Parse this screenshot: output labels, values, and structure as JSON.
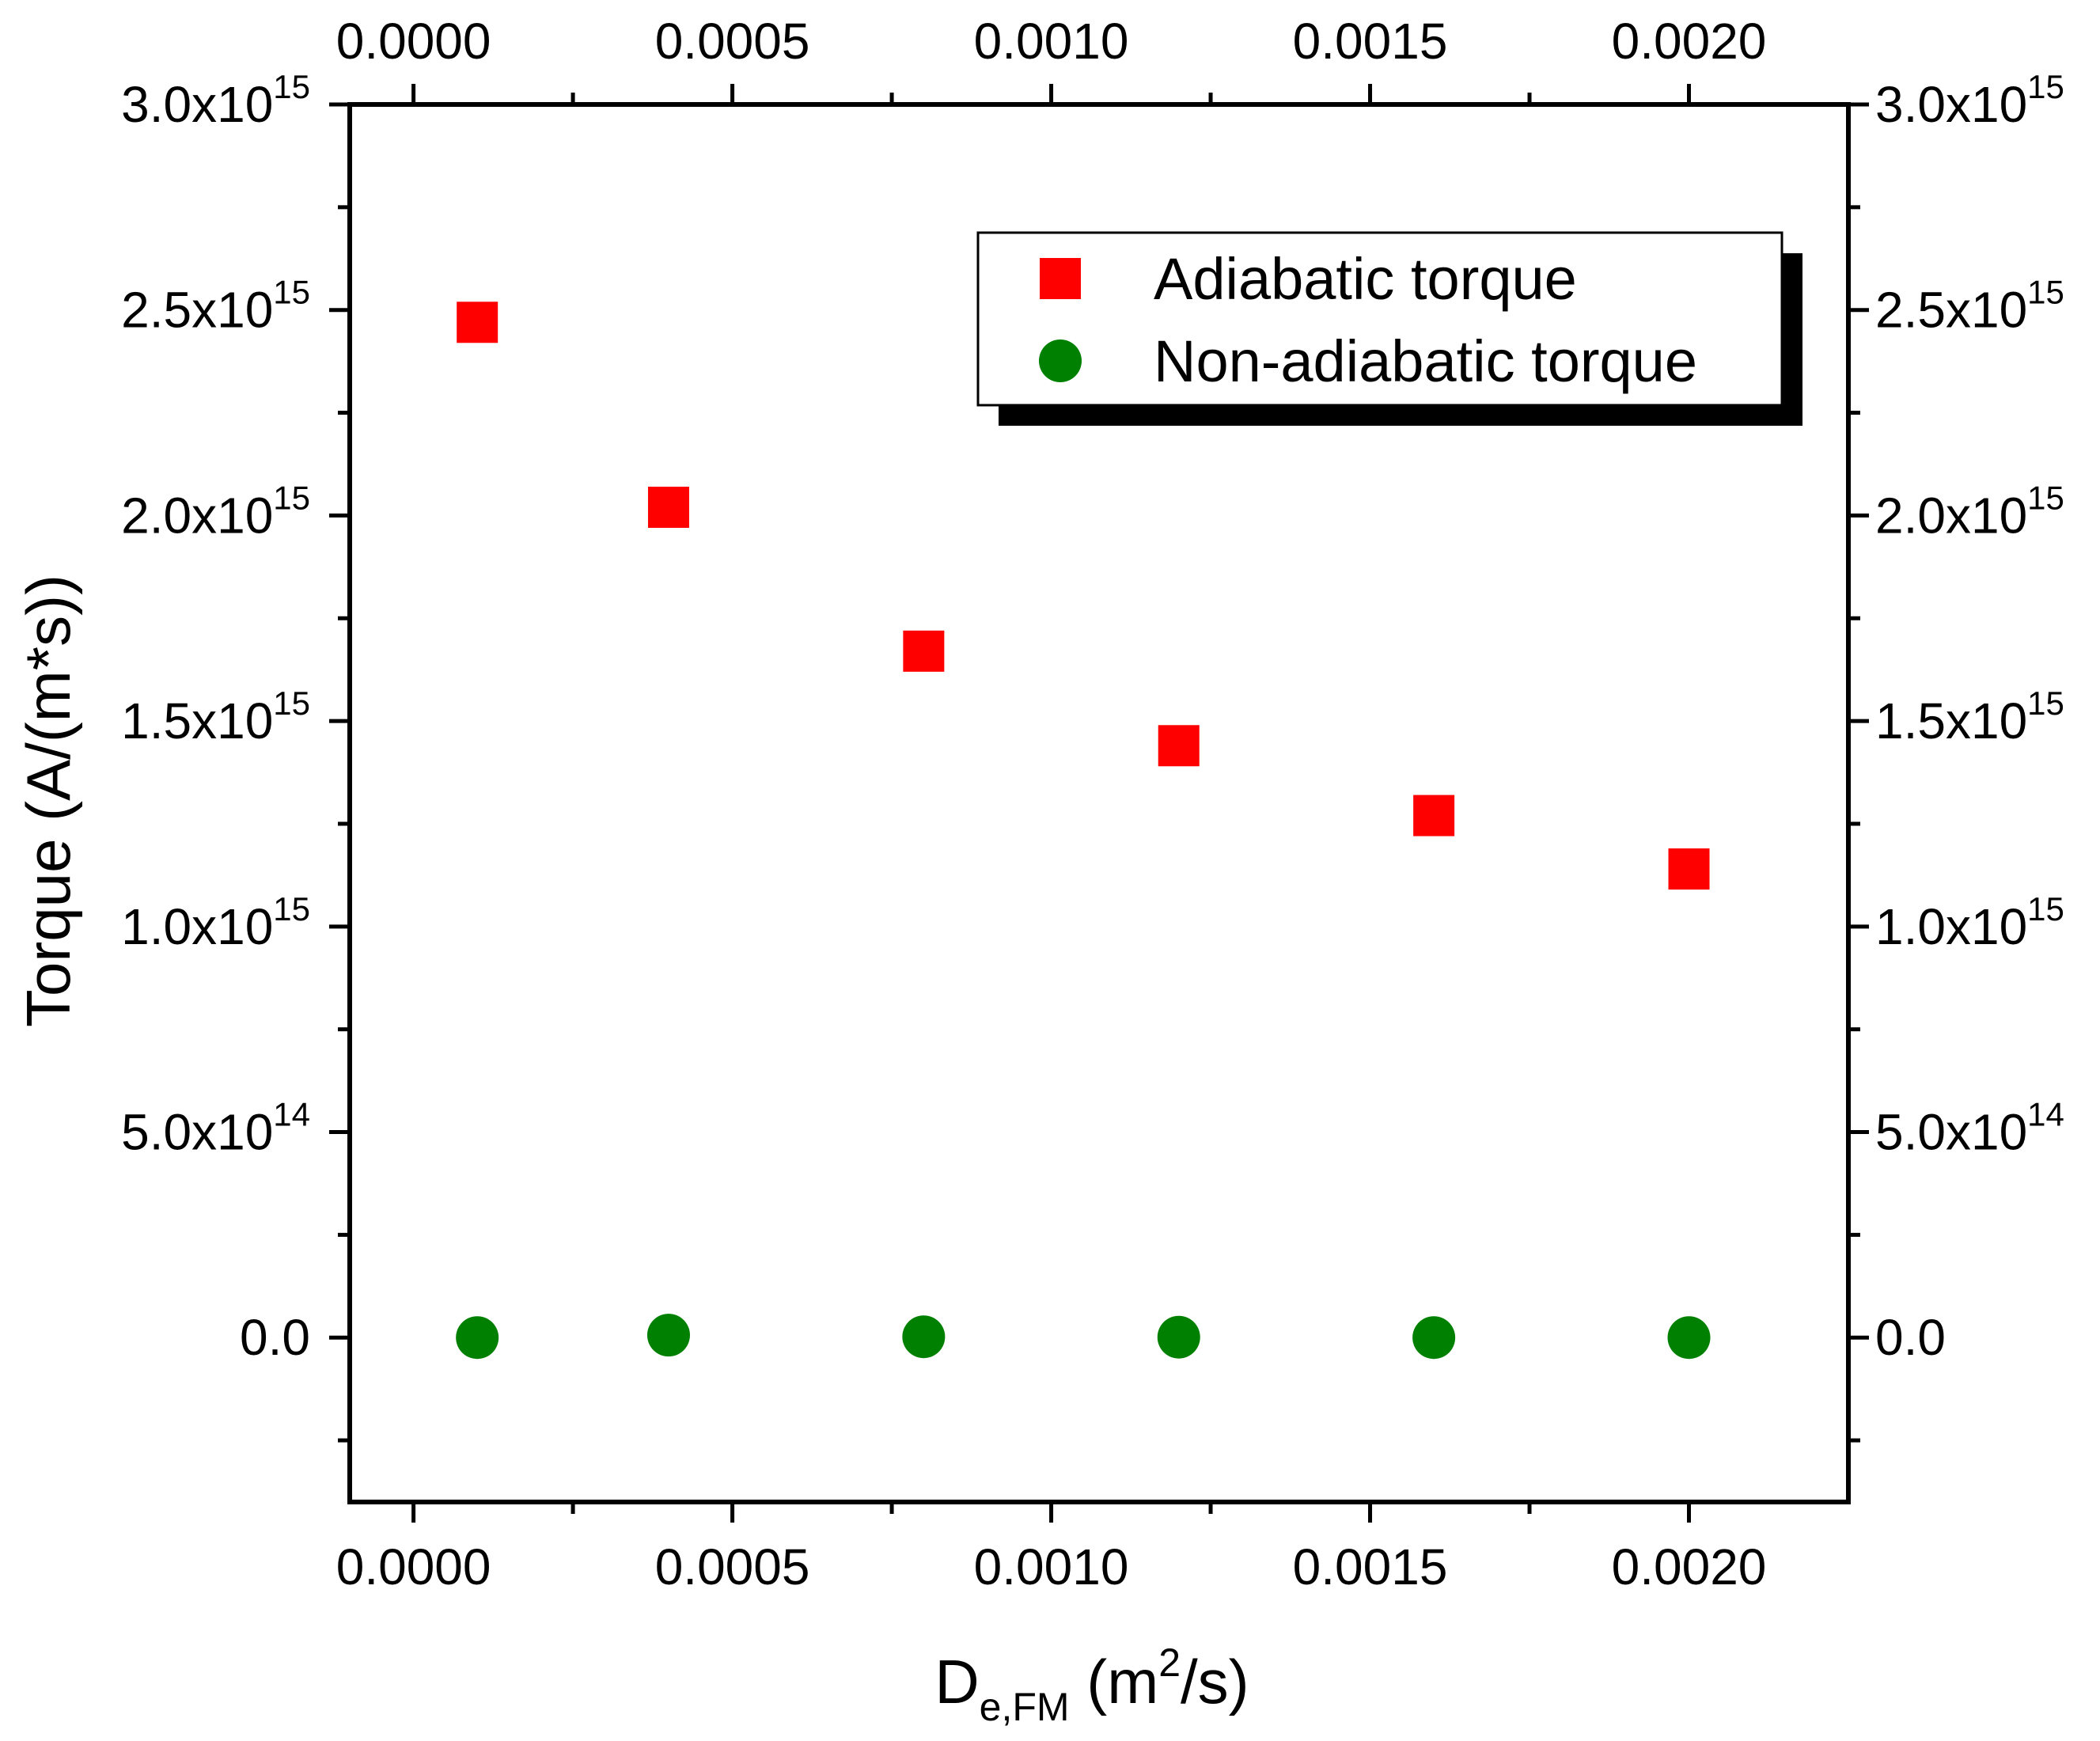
{
  "chart_data": {
    "type": "scatter",
    "title": "",
    "xlabel": {
      "main": "D",
      "subscript": "e,FM",
      "unit_open": " (m",
      "unit_sup": "2",
      "unit_close": "/s)"
    },
    "ylabel": "Torque (A/(m*s))",
    "xlim": [
      -0.0001,
      0.00225
    ],
    "ylim": [
      -400000000000000.0,
      3000000000000000.0
    ],
    "x_ticks": [
      {
        "value": 0.0,
        "label": "0.0000"
      },
      {
        "value": 0.0005,
        "label": "0.0005"
      },
      {
        "value": 0.001,
        "label": "0.0010"
      },
      {
        "value": 0.0015,
        "label": "0.0015"
      },
      {
        "value": 0.002,
        "label": "0.0020"
      }
    ],
    "x_minor_ticks": [
      0.00025,
      0.00075,
      0.00125,
      0.00175
    ],
    "y_ticks": [
      {
        "value": 0.0,
        "mantissa": "0.0",
        "exponent": ""
      },
      {
        "value": 500000000000000.0,
        "mantissa": "5.0x10",
        "exponent": "14"
      },
      {
        "value": 1000000000000000.0,
        "mantissa": "1.0x10",
        "exponent": "15"
      },
      {
        "value": 1500000000000000.0,
        "mantissa": "1.5x10",
        "exponent": "15"
      },
      {
        "value": 2000000000000000.0,
        "mantissa": "2.0x10",
        "exponent": "15"
      },
      {
        "value": 2500000000000000.0,
        "mantissa": "2.5x10",
        "exponent": "15"
      },
      {
        "value": 3000000000000000.0,
        "mantissa": "3.0x10",
        "exponent": "15"
      }
    ],
    "y_minor_ticks": [
      -250000000000000.0,
      250000000000000.0,
      750000000000000.0,
      1250000000000000.0,
      1750000000000000.0,
      2250000000000000.0,
      2750000000000000.0
    ],
    "legend_position": "top-right",
    "series": [
      {
        "name": "Adiabatic torque",
        "marker": "square",
        "color": "#ff0000",
        "x": [
          0.0001,
          0.0004,
          0.0008,
          0.0012,
          0.0016,
          0.002
        ],
        "y": [
          2470000000000000.0,
          2020000000000000.0,
          1670000000000000.0,
          1440000000000000.0,
          1270000000000000.0,
          1140000000000000.0
        ]
      },
      {
        "name": "Non-adiabatic torque",
        "marker": "circle",
        "color": "#008000",
        "x": [
          0.0001,
          0.0004,
          0.0008,
          0.0012,
          0.0016,
          0.002
        ],
        "y": [
          0,
          6000000000000.0,
          2000000000000.0,
          1000000000000.0,
          0,
          0
        ]
      }
    ]
  }
}
